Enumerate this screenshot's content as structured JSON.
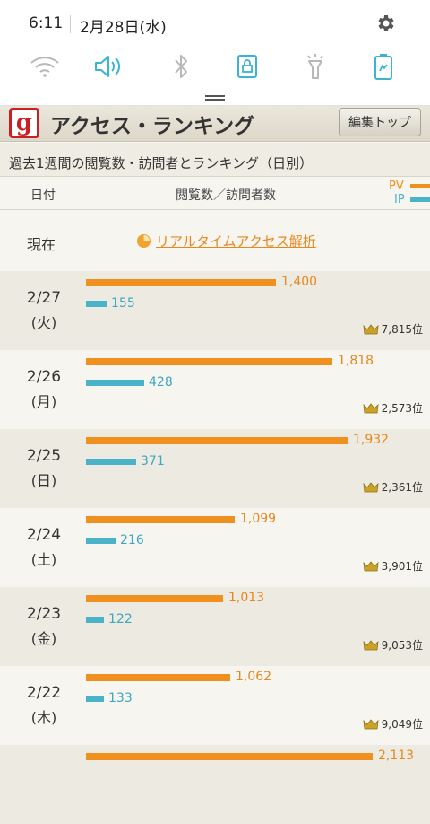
{
  "status": {
    "time": "6:11",
    "date": "2月28日(水)"
  },
  "quick_settings": {
    "icons": [
      "wifi-icon",
      "sound-icon",
      "bluetooth-icon",
      "screen-lock-icon",
      "flashlight-icon",
      "battery-saver-icon"
    ],
    "active_color": "#3bb3d6",
    "inactive_color": "#b8b8b8"
  },
  "header": {
    "title": "アクセス・ランキング",
    "logo_letter": "g",
    "top_button": "編集トップ"
  },
  "subtitle": "過去1週間の閲覧数・訪問者とランキング（日別）",
  "columns": {
    "date": "日付",
    "views": "閲覧数／訪問者数",
    "legend_pv": "PV",
    "legend_ip": "IP"
  },
  "now": {
    "label": "現在",
    "link": "リアルタイムアクセス解析"
  },
  "colors": {
    "pv": "#f0901e",
    "ip": "#4ab3c9"
  },
  "days": [
    {
      "date": "2/27",
      "dow": "(火)",
      "pv": "1,400",
      "ip": "155",
      "rank": "7,815位",
      "pv_n": 1400,
      "ip_n": 155
    },
    {
      "date": "2/26",
      "dow": "(月)",
      "pv": "1,818",
      "ip": "428",
      "rank": "2,573位",
      "pv_n": 1818,
      "ip_n": 428
    },
    {
      "date": "2/25",
      "dow": "(日)",
      "pv": "1,932",
      "ip": "371",
      "rank": "2,361位",
      "pv_n": 1932,
      "ip_n": 371
    },
    {
      "date": "2/24",
      "dow": "(土)",
      "pv": "1,099",
      "ip": "216",
      "rank": "3,901位",
      "pv_n": 1099,
      "ip_n": 216
    },
    {
      "date": "2/23",
      "dow": "(金)",
      "pv": "1,013",
      "ip": "122",
      "rank": "9,053位",
      "pv_n": 1013,
      "ip_n": 122
    },
    {
      "date": "2/22",
      "dow": "(木)",
      "pv": "1,062",
      "ip": "133",
      "rank": "9,049位",
      "pv_n": 1062,
      "ip_n": 133
    },
    {
      "pv": "2,113",
      "pv_n": 2113
    }
  ]
}
